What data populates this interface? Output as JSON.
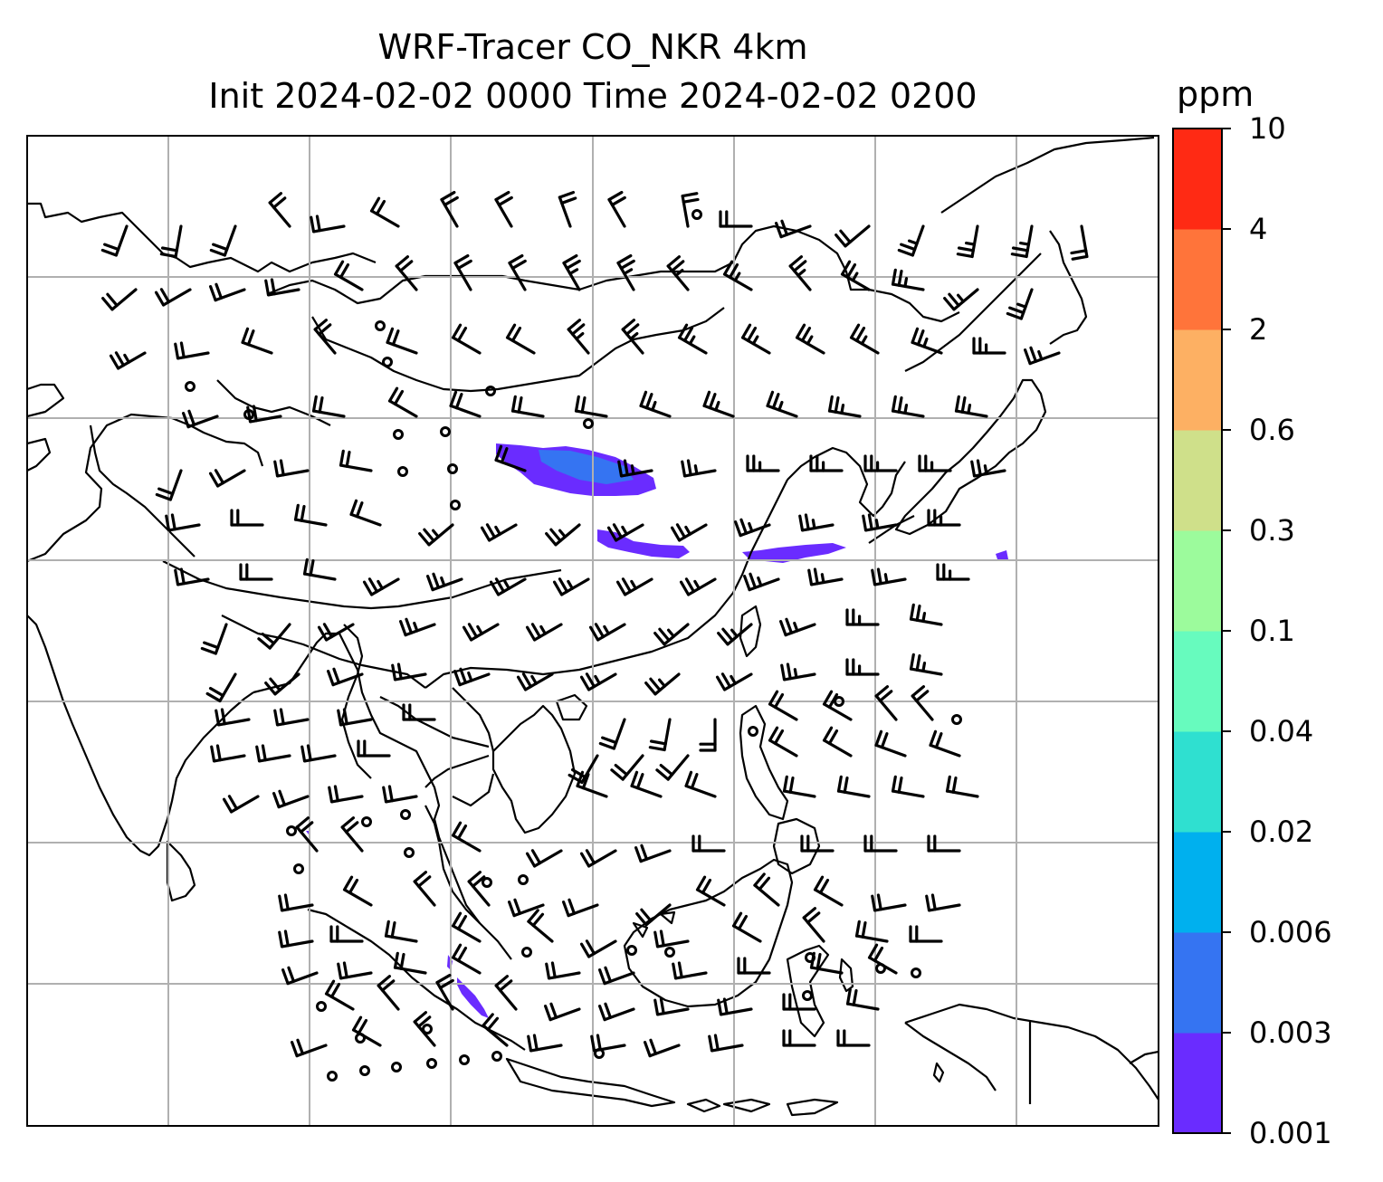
{
  "chart_data": {
    "type": "heatmap",
    "title": "WRF-Tracer CO_NKR 4km",
    "subtitle": "Init 2024-02-02 0000 Time 2024-02-02 0200",
    "colorbar": {
      "unit": "ppm",
      "levels": [
        "0.001",
        "0.003",
        "0.006",
        "0.02",
        "0.04",
        "0.1",
        "0.3",
        "0.6",
        "2",
        "4",
        "10"
      ],
      "colors": [
        "#6a2cff",
        "#3574f2",
        "#00b0ee",
        "#2fe0d0",
        "#67fbbe",
        "#9cfb9c",
        "#cfe08a",
        "#fdb063",
        "#ff743a",
        "#ff2a14"
      ]
    },
    "grid": true,
    "overlays": [
      "coastlines",
      "country borders",
      "wind barbs"
    ],
    "colors": {
      "grid": "#b0b0b0",
      "coast": "#000000",
      "tracer": "#6a2cff",
      "tracer_secondary": "#3574f2"
    }
  }
}
